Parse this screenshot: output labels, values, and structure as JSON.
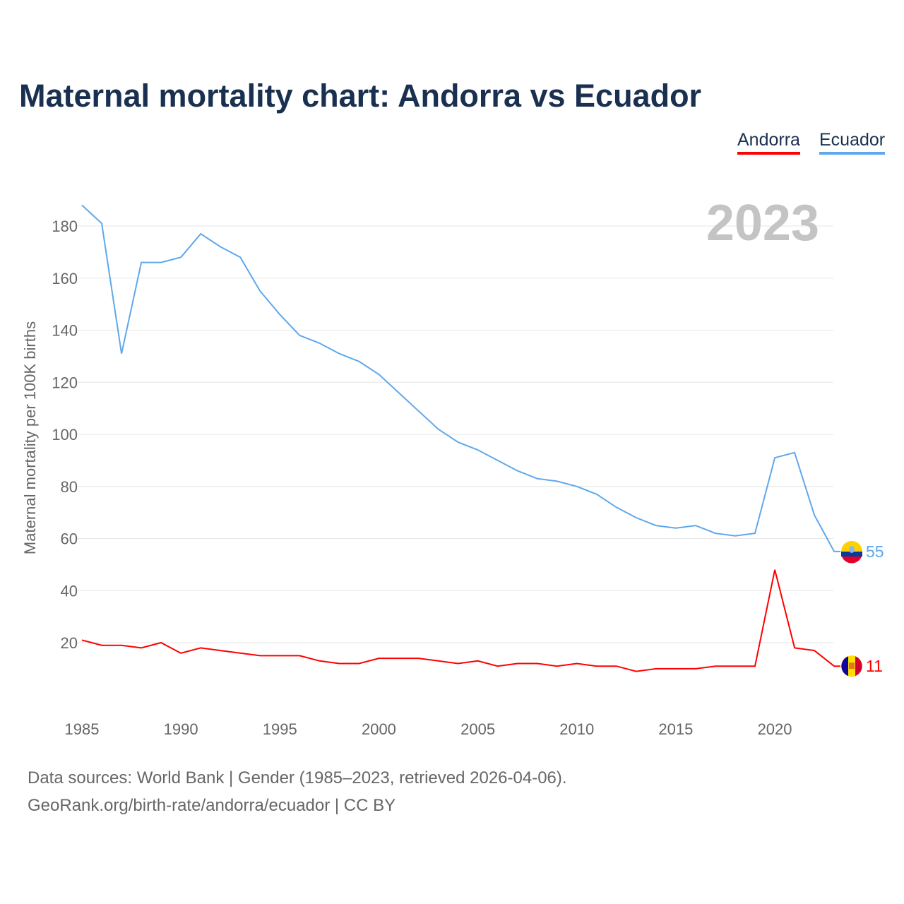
{
  "title": "Maternal mortality chart: Andorra vs Ecuador",
  "legend": [
    "Andorra",
    "Ecuador"
  ],
  "year_label": "2023",
  "footer": [
    "Data sources: World Bank | Gender (1985–2023, retrieved 2026-04-06).",
    "GeoRank.org/birth-rate/andorra/ecuador | CC BY"
  ],
  "chart_data": {
    "type": "line",
    "title": "Maternal mortality chart: Andorra vs Ecuador",
    "xlabel": "",
    "ylabel": "Maternal mortality per 100K births",
    "xlim": [
      1985,
      2023
    ],
    "ylim": [
      0,
      190
    ],
    "xticks": [
      1985,
      1990,
      1995,
      2000,
      2005,
      2010,
      2015,
      2020
    ],
    "yticks": [
      20,
      40,
      60,
      80,
      100,
      120,
      140,
      160,
      180
    ],
    "grid": true,
    "legend_position": "top-right",
    "x": [
      1985,
      1986,
      1987,
      1988,
      1989,
      1990,
      1991,
      1992,
      1993,
      1994,
      1995,
      1996,
      1997,
      1998,
      1999,
      2000,
      2001,
      2002,
      2003,
      2004,
      2005,
      2006,
      2007,
      2008,
      2009,
      2010,
      2011,
      2012,
      2013,
      2014,
      2015,
      2016,
      2017,
      2018,
      2019,
      2020,
      2021,
      2022,
      2023
    ],
    "series": [
      {
        "name": "Andorra",
        "color": "#ff0000",
        "end_label": "11",
        "values": [
          21,
          19,
          19,
          18,
          20,
          16,
          18,
          17,
          16,
          15,
          15,
          15,
          13,
          12,
          12,
          14,
          14,
          14,
          13,
          12,
          13,
          11,
          12,
          12,
          11,
          12,
          11,
          11,
          9,
          10,
          10,
          10,
          11,
          11,
          11,
          48,
          18,
          17,
          11
        ]
      },
      {
        "name": "Ecuador",
        "color": "#5ea8ec",
        "end_label": "55",
        "values": [
          188,
          181,
          131,
          166,
          166,
          168,
          177,
          172,
          168,
          155,
          146,
          138,
          135,
          131,
          128,
          123,
          116,
          109,
          102,
          97,
          94,
          90,
          86,
          83,
          82,
          80,
          77,
          72,
          68,
          65,
          64,
          65,
          62,
          61,
          62,
          91,
          93,
          69,
          55
        ]
      }
    ]
  }
}
